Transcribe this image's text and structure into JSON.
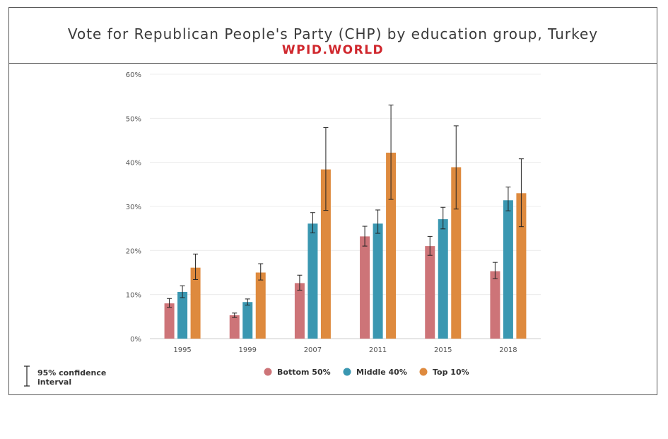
{
  "header": {
    "title": "Vote for Republican People's Party (CHP) by education group, Turkey",
    "subtitle": "WPID.WORLD"
  },
  "ci_note": {
    "line1": "95% confidence",
    "line2": "interval"
  },
  "colors": {
    "Bottom 50%": "#cd7478",
    "Middle 40%": "#3a97b1",
    "Top 10%": "#de8a3e",
    "title": "#3a3a3a",
    "subtitle": "#d0282e"
  },
  "chart_data": {
    "type": "bar",
    "title": "Vote for Republican People's Party (CHP) by education group, Turkey",
    "xlabel": "",
    "ylabel": "",
    "ylim": [
      0,
      60
    ],
    "y_ticks": [
      "0%",
      "10%",
      "20%",
      "30%",
      "40%",
      "50%",
      "60%"
    ],
    "y_tick_values": [
      0,
      10,
      20,
      30,
      40,
      50,
      60
    ],
    "grid": true,
    "legend_position": "bottom",
    "categories": [
      "1995",
      "1999",
      "2007",
      "2011",
      "2015",
      "2018"
    ],
    "series": [
      {
        "name": "Bottom 50%",
        "values": [
          8.0,
          5.3,
          12.6,
          23.2,
          21.0,
          15.3
        ],
        "ci_low": [
          7.1,
          4.8,
          11.0,
          21.0,
          18.9,
          13.6
        ],
        "ci_high": [
          9.1,
          5.8,
          14.4,
          25.5,
          23.2,
          17.3
        ]
      },
      {
        "name": "Middle 40%",
        "values": [
          10.6,
          8.3,
          26.1,
          26.1,
          27.1,
          31.4
        ],
        "ci_low": [
          9.3,
          7.6,
          24.0,
          23.9,
          24.9,
          29.0
        ],
        "ci_high": [
          12.0,
          9.0,
          28.6,
          29.2,
          29.8,
          34.4
        ]
      },
      {
        "name": "Top 10%",
        "values": [
          16.1,
          15.0,
          38.4,
          42.2,
          38.9,
          33.0
        ],
        "ci_low": [
          13.4,
          13.3,
          29.1,
          31.6,
          29.4,
          25.4
        ],
        "ci_high": [
          19.2,
          17.0,
          47.9,
          53.0,
          48.3,
          40.8
        ]
      }
    ]
  }
}
